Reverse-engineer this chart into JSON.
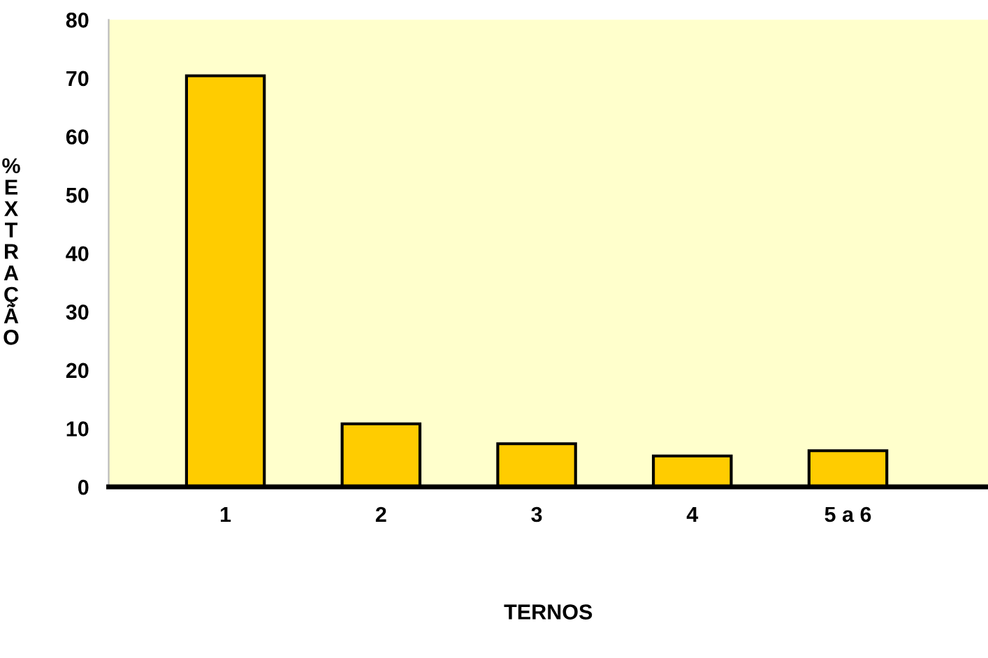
{
  "chart_data": {
    "type": "bar",
    "ylabel": "% EXTRAÇÃO",
    "xlabel": "TERNOS",
    "categories": [
      "1",
      "2",
      "3",
      "4",
      "5 a 6"
    ],
    "values": [
      70.4,
      10.8,
      7.4,
      5.3,
      6.2
    ],
    "color": "#ffcc00",
    "ylim": [
      0,
      80
    ],
    "yticks": [
      0,
      10,
      20,
      30,
      40,
      50,
      60,
      70,
      80
    ],
    "grid": false,
    "legend": false
  }
}
